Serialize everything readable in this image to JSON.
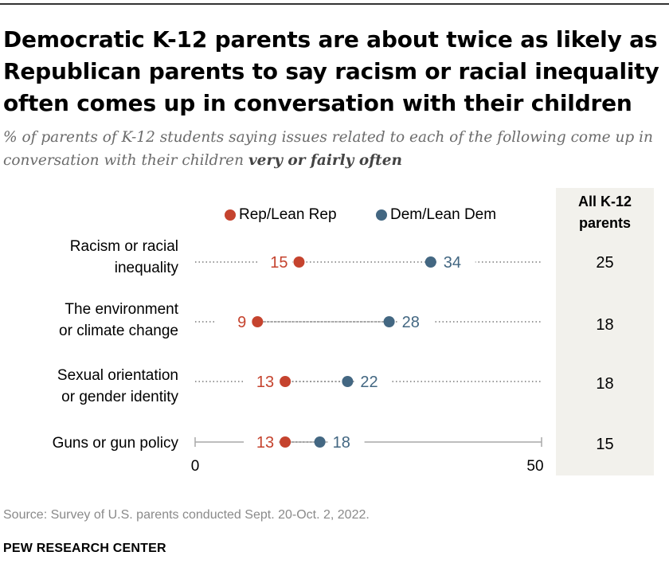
{
  "title": "Democratic K-12 parents are about twice as likely as Republican parents to say racism or racial inequality often comes up in conversation with their children",
  "subtitle_prefix": "% of parents of K-12 students saying issues related to each of the following come up in conversation with their children ",
  "subtitle_emphasis": "very or fairly often",
  "legend": {
    "rep": "Rep/Lean Rep",
    "dem": "Dem/Lean Dem"
  },
  "all_header_line1": "All K-12",
  "all_header_line2": "parents",
  "rows": [
    {
      "label_line1": "Racism or racial",
      "label_line2": "inequality",
      "all": "25"
    },
    {
      "label_line1": "The environment",
      "label_line2": "or climate change",
      "all": "18"
    },
    {
      "label_line1": "Sexual orientation",
      "label_line2": "or gender identity",
      "all": "18"
    },
    {
      "label_line1": "Guns or gun policy",
      "label_line2": "",
      "all": "15"
    }
  ],
  "source": "Source: Survey of U.S. parents conducted Sept. 20-Oct. 2, 2022.",
  "org": "PEW RESEARCH CENTER",
  "colors": {
    "rep": "#c5432e",
    "dem": "#436782",
    "dots": "#9a9a9a",
    "axis": "#a8a8a8"
  },
  "chart_data": {
    "type": "dot",
    "categories": [
      "Racism or racial inequality",
      "The environment or climate change",
      "Sexual orientation or gender identity",
      "Guns or gun policy"
    ],
    "series": [
      {
        "name": "Rep/Lean Rep",
        "values": [
          15,
          9,
          13,
          13
        ]
      },
      {
        "name": "Dem/Lean Dem",
        "values": [
          34,
          28,
          22,
          18
        ]
      }
    ],
    "all_parents": [
      25,
      18,
      18,
      15
    ],
    "xlim": [
      0,
      50
    ],
    "xticks": [
      "0",
      "50"
    ],
    "title": "Democratic K-12 parents are about twice as likely as Republican parents to say racism or racial inequality often comes up in conversation with their children",
    "xlabel": "",
    "ylabel": ""
  }
}
